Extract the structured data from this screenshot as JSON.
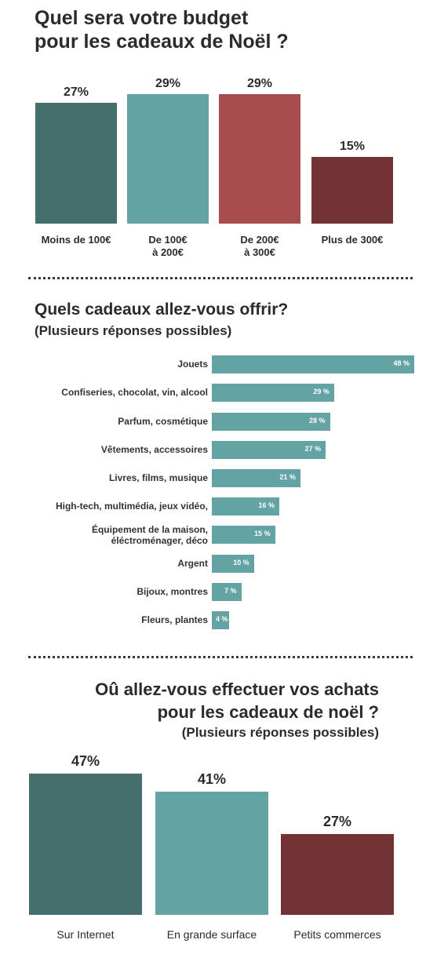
{
  "chart_data": [
    {
      "type": "bar",
      "title": "Quel sera votre budget pour les cadeaux de Noël ?",
      "categories": [
        "Moins de 100€",
        "De 100€\nà 200€",
        "De 200€\nà 300€",
        "Plus de 300€"
      ],
      "values": [
        27,
        29,
        29,
        15
      ],
      "value_labels": [
        "27%",
        "29%",
        "29%",
        "15%"
      ],
      "colors": [
        "#456f6c",
        "#64a3a3",
        "#a74d4d",
        "#733234"
      ],
      "ylim": [
        0,
        29
      ]
    },
    {
      "type": "bar",
      "orientation": "horizontal",
      "title": "Quels cadeaux allez-vous offrir?",
      "subtitle": "(Plusieurs réponses possibles)",
      "categories": [
        "Jouets",
        "Confiseries, chocolat, vin, alcool",
        "Parfum, cosmétique",
        "Vêtements, accessoires",
        "Livres, films, musique",
        "High-tech, multimédia, jeux vidéo,",
        "Équipement de la maison,\néléctroménager, déco",
        "Argent",
        "Bijoux, montres",
        "Fleurs, plantes"
      ],
      "values": [
        48,
        29,
        28,
        27,
        21,
        16,
        15,
        10,
        7,
        4
      ],
      "value_labels": [
        "48 %",
        "29 %",
        "28 %",
        "27 %",
        "21 %",
        "16 %",
        "15 %",
        "10 %",
        "7 %",
        "4 %"
      ],
      "colors": [
        "#64a3a3"
      ],
      "xlim": [
        0,
        48
      ]
    },
    {
      "type": "bar",
      "title": "Oû allez-vous effectuer vos achats pour les cadeaux de noël ?",
      "subtitle": "(Plusieurs réponses possibles)",
      "categories": [
        "Sur Internet",
        "En grande surface",
        "Petits commerces"
      ],
      "values": [
        47,
        41,
        27
      ],
      "value_labels": [
        "47%",
        "41%",
        "27%"
      ],
      "colors": [
        "#456f6c",
        "#64a3a3",
        "#733234"
      ],
      "ylim": [
        0,
        47
      ]
    }
  ],
  "titles": {
    "t1": "Quel sera votre budget\npour les cadeaux de Noël ?",
    "t2": "Quels cadeaux allez-vous offrir?",
    "s2": "(Plusieurs réponses possibles)",
    "t3": "Oû allez-vous effectuer vos achats\npour les cadeaux de noël ?",
    "s3": "(Plusieurs réponses possibles)"
  }
}
